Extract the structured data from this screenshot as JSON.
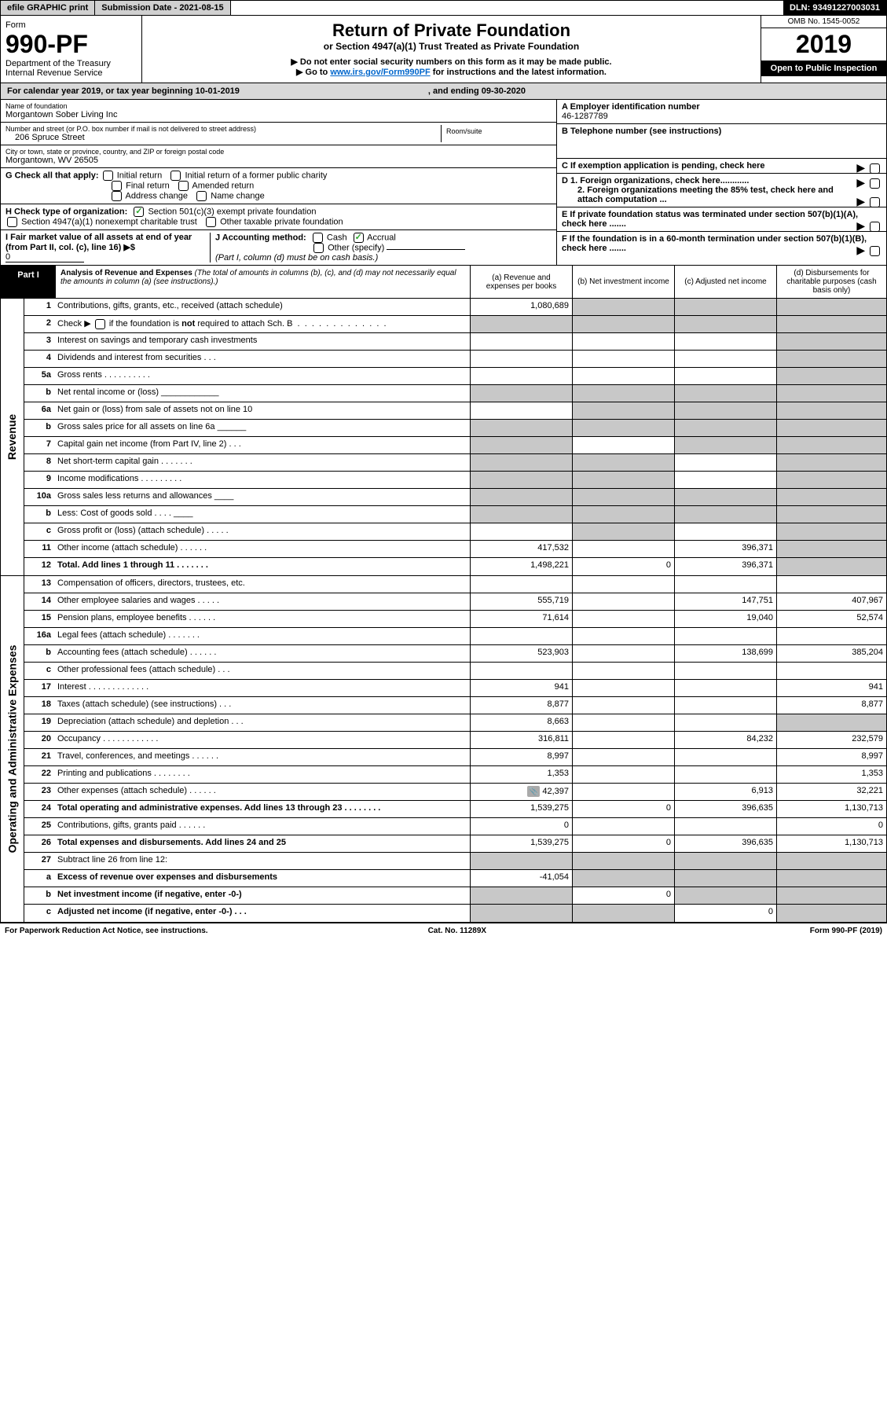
{
  "colors": {
    "link": "#0066cc",
    "shade": "#c8c8c8",
    "header_shade": "#d8d8d8",
    "black": "#000000",
    "check_green": "#2aa82a"
  },
  "topbar": {
    "efile": "efile GRAPHIC print",
    "submission": "Submission Date - 2021-08-15",
    "dln": "DLN: 93491227003031"
  },
  "header": {
    "form_label": "Form",
    "form_no": "990-PF",
    "dept": "Department of the Treasury",
    "irs": "Internal Revenue Service",
    "title": "Return of Private Foundation",
    "subtitle": "or Section 4947(a)(1) Trust Treated as Private Foundation",
    "note1": "▶ Do not enter social security numbers on this form as it may be made public.",
    "note2_pre": "▶ Go to ",
    "note2_link": "www.irs.gov/Form990PF",
    "note2_post": " for instructions and the latest information.",
    "omb": "OMB No. 1545-0052",
    "year": "2019",
    "open": "Open to Public Inspection"
  },
  "cal": {
    "text": "For calendar year 2019, or tax year beginning 10-01-2019",
    "ending": ", and ending 09-30-2020"
  },
  "entity": {
    "name_label": "Name of foundation",
    "name": "Morgantown Sober Living Inc",
    "addr_label": "Number and street (or P.O. box number if mail is not delivered to street address)",
    "addr": "206 Spruce Street",
    "room_label": "Room/suite",
    "city_label": "City or town, state or province, country, and ZIP or foreign postal code",
    "city": "Morgantown, WV  26505",
    "a_label": "A Employer identification number",
    "a_val": "46-1287789",
    "b_label": "B Telephone number (see instructions)",
    "c_label": "C If exemption application is pending, check here",
    "d1": "D 1. Foreign organizations, check here............",
    "d2": "2. Foreign organizations meeting the 85% test, check here and attach computation ...",
    "e": "E If private foundation status was terminated under section 507(b)(1)(A), check here .......",
    "f": "F  If the foundation is in a 60-month termination under section 507(b)(1)(B), check here .......",
    "g_label": "G Check all that apply:",
    "g_opts": [
      "Initial return",
      "Initial return of a former public charity",
      "Final return",
      "Amended return",
      "Address change",
      "Name change"
    ],
    "h_label": "H Check type of organization:",
    "h_opts": [
      "Section 501(c)(3) exempt private foundation",
      "Section 4947(a)(1) nonexempt charitable trust",
      "Other taxable private foundation"
    ],
    "i_label": "I Fair market value of all assets at end of year (from Part II, col. (c), line 16) ▶$",
    "i_val": "0",
    "j_label": "J Accounting method:",
    "j_opts": [
      "Cash",
      "Accrual",
      "Other (specify)"
    ],
    "j_note": "(Part I, column (d) must be on cash basis.)"
  },
  "part1": {
    "tag": "Part I",
    "title": "Analysis of Revenue and Expenses",
    "note": "(The total of amounts in columns (b), (c), and (d) may not necessarily equal the amounts in column (a) (see instructions).)",
    "cols": {
      "a": "(a)    Revenue and expenses per books",
      "b": "(b)   Net investment income",
      "c": "(c)   Adjusted net income",
      "d": "(d)   Disbursements for charitable purposes (cash basis only)"
    }
  },
  "sections": {
    "revenue": "Revenue",
    "expenses": "Operating and Administrative Expenses"
  },
  "rows": [
    {
      "n": "1",
      "d": "Contributions, gifts, grants, etc., received (attach schedule)",
      "a": "1,080,689",
      "shade": [
        "b",
        "c",
        "d"
      ]
    },
    {
      "n": "2",
      "d": "Check ▶ ☐ if the foundation is not required to attach Sch. B",
      "shade": [
        "a",
        "b",
        "c",
        "d"
      ],
      "html": true
    },
    {
      "n": "3",
      "d": "Interest on savings and temporary cash investments",
      "shade": [
        "d"
      ]
    },
    {
      "n": "4",
      "d": "Dividends and interest from securities   .   .   .",
      "shade": [
        "d"
      ]
    },
    {
      "n": "5a",
      "d": "Gross rents   .   .   .   .   .   .   .   .   .   .",
      "shade": [
        "d"
      ]
    },
    {
      "n": "b",
      "d": "Net rental income or (loss)   ____________",
      "shade": [
        "a",
        "b",
        "c",
        "d"
      ]
    },
    {
      "n": "6a",
      "d": "Net gain or (loss) from sale of assets not on line 10",
      "shade": [
        "b",
        "c",
        "d"
      ]
    },
    {
      "n": "b",
      "d": "Gross sales price for all assets on line 6a  ______",
      "shade": [
        "a",
        "b",
        "c",
        "d"
      ]
    },
    {
      "n": "7",
      "d": "Capital gain net income (from Part IV, line 2)   .   .   .",
      "shade": [
        "a",
        "c",
        "d"
      ]
    },
    {
      "n": "8",
      "d": "Net short-term capital gain   .   .   .   .   .   .   .",
      "shade": [
        "a",
        "b",
        "d"
      ]
    },
    {
      "n": "9",
      "d": "Income modifications   .   .   .   .   .   .   .   .   .",
      "shade": [
        "a",
        "b",
        "d"
      ]
    },
    {
      "n": "10a",
      "d": "Gross sales less returns and allowances  ____",
      "shade": [
        "a",
        "b",
        "c",
        "d"
      ]
    },
    {
      "n": "b",
      "d": "Less: Cost of goods sold   .   .   .   .  ____",
      "shade": [
        "a",
        "b",
        "c",
        "d"
      ]
    },
    {
      "n": "c",
      "d": "Gross profit or (loss) (attach schedule)   .   .   .   .   .",
      "shade": [
        "b",
        "d"
      ]
    },
    {
      "n": "11",
      "d": "Other income (attach schedule)   .   .   .   .   .   .",
      "a": "417,532",
      "c": "396,371",
      "shade": [
        "d"
      ]
    },
    {
      "n": "12",
      "d": "Total. Add lines 1 through 11   .   .   .   .   .   .   .",
      "a": "1,498,221",
      "b": "0",
      "c": "396,371",
      "bold": true,
      "shade": [
        "d"
      ]
    }
  ],
  "expRows": [
    {
      "n": "13",
      "d": "Compensation of officers, directors, trustees, etc."
    },
    {
      "n": "14",
      "d": "Other employee salaries and wages   .   .   .   .   .",
      "a": "555,719",
      "c": "147,751",
      "de": "407,967"
    },
    {
      "n": "15",
      "d": "Pension plans, employee benefits   .   .   .   .   .   .",
      "a": "71,614",
      "c": "19,040",
      "de": "52,574"
    },
    {
      "n": "16a",
      "d": "Legal fees (attach schedule)   .   .   .   .   .   .   ."
    },
    {
      "n": "b",
      "d": "Accounting fees (attach schedule)   .   .   .   .   .   .",
      "a": "523,903",
      "c": "138,699",
      "de": "385,204"
    },
    {
      "n": "c",
      "d": "Other professional fees (attach schedule)   .   .   ."
    },
    {
      "n": "17",
      "d": "Interest   .   .   .   .   .   .   .   .   .   .   .   .   .",
      "a": "941",
      "de": "941"
    },
    {
      "n": "18",
      "d": "Taxes (attach schedule) (see instructions)   .   .   .",
      "a": "8,877",
      "de": "8,877"
    },
    {
      "n": "19",
      "d": "Depreciation (attach schedule) and depletion   .   .   .",
      "a": "8,663",
      "shade": [
        "d"
      ]
    },
    {
      "n": "20",
      "d": "Occupancy   .   .   .   .   .   .   .   .   .   .   .   .",
      "a": "316,811",
      "c": "84,232",
      "de": "232,579"
    },
    {
      "n": "21",
      "d": "Travel, conferences, and meetings   .   .   .   .   .   .",
      "a": "8,997",
      "de": "8,997"
    },
    {
      "n": "22",
      "d": "Printing and publications   .   .   .   .   .   .   .   .",
      "a": "1,353",
      "de": "1,353"
    },
    {
      "n": "23",
      "d": "Other expenses (attach schedule)   .   .   .   .   .   .",
      "a": "42,397",
      "c": "6,913",
      "de": "32,221",
      "attach": true
    },
    {
      "n": "24",
      "d": "Total operating and administrative expenses. Add lines 13 through 23   .   .   .   .   .   .   .   .",
      "a": "1,539,275",
      "b": "0",
      "c": "396,635",
      "de": "1,130,713",
      "bold": true
    },
    {
      "n": "25",
      "d": "Contributions, gifts, grants paid   .   .   .   .   .   .",
      "a": "0",
      "de": "0"
    },
    {
      "n": "26",
      "d": "Total expenses and disbursements. Add lines 24 and 25",
      "a": "1,539,275",
      "b": "0",
      "c": "396,635",
      "de": "1,130,713",
      "bold": true
    },
    {
      "n": "27",
      "d": "Subtract line 26 from line 12:",
      "shade": [
        "a",
        "b",
        "c",
        "d"
      ]
    },
    {
      "n": "a",
      "d": "Excess of revenue over expenses and disbursements",
      "a": "-41,054",
      "bold": true,
      "shade": [
        "b",
        "c",
        "d"
      ]
    },
    {
      "n": "b",
      "d": "Net investment income (if negative, enter -0-)",
      "b": "0",
      "bold": true,
      "shade": [
        "a",
        "c",
        "d"
      ]
    },
    {
      "n": "c",
      "d": "Adjusted net income (if negative, enter -0-)   .   .   .",
      "c": "0",
      "bold": true,
      "shade": [
        "a",
        "b",
        "d"
      ]
    }
  ],
  "footer": {
    "left": "For Paperwork Reduction Act Notice, see instructions.",
    "mid": "Cat. No. 11289X",
    "right": "Form 990-PF (2019)"
  }
}
